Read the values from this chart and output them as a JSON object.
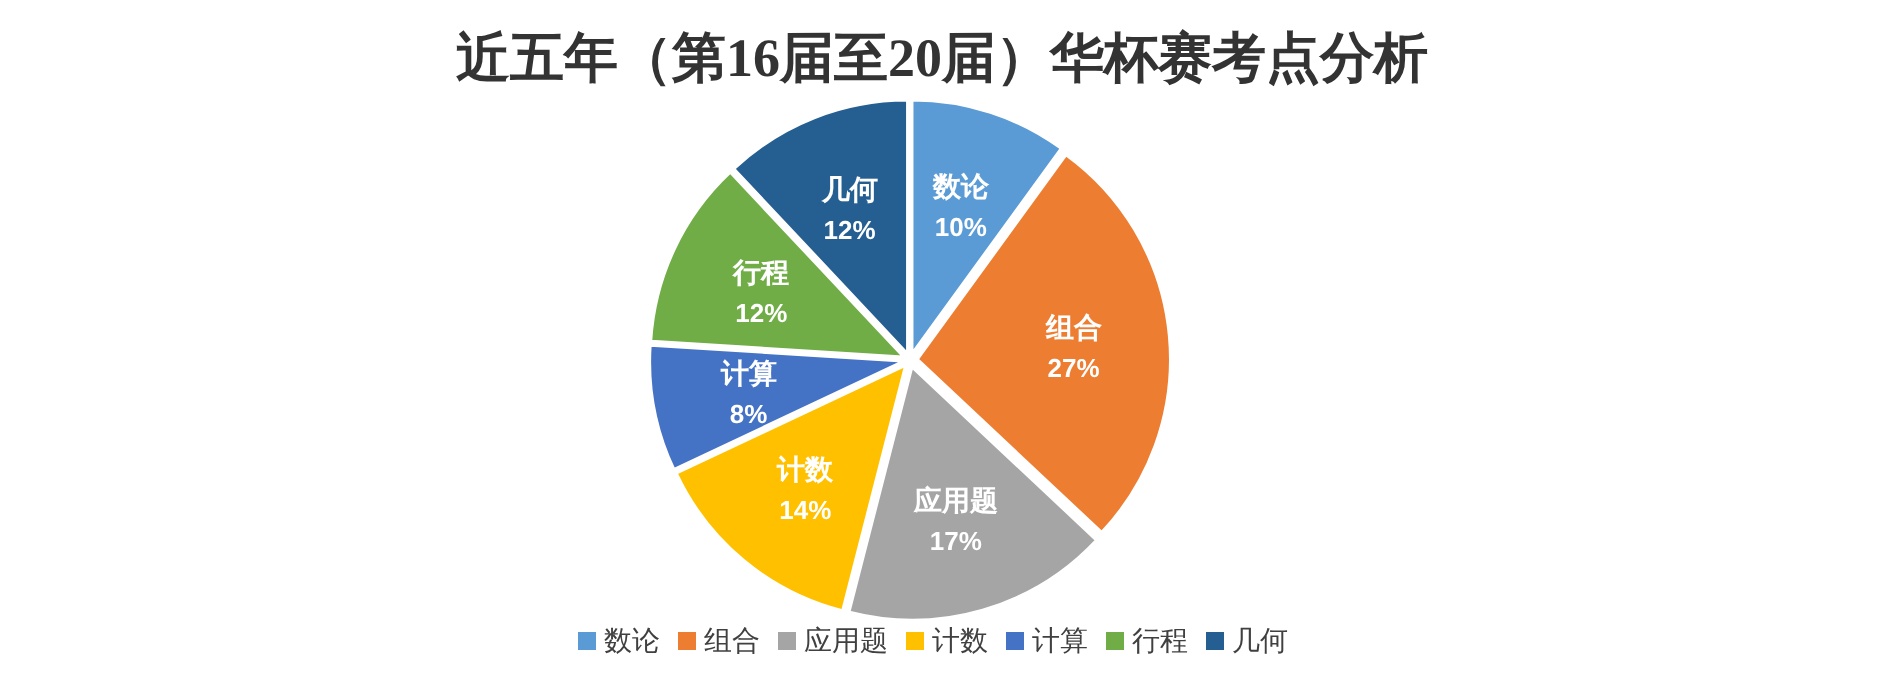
{
  "chart_data": {
    "type": "pie",
    "title": "近五年（第16届至20届）华杯赛考点分析",
    "categories": [
      "数论",
      "组合",
      "应用题",
      "计数",
      "计算",
      "行程",
      "几何"
    ],
    "values": [
      10,
      27,
      17,
      14,
      8,
      12,
      12
    ],
    "colors": [
      "#5b9bd5",
      "#ed7d31",
      "#a5a5a5",
      "#ffc000",
      "#4472c4",
      "#70ad47",
      "#255e91"
    ],
    "value_labels": [
      "10%",
      "27%",
      "17%",
      "14%",
      "8%",
      "12%",
      "12%"
    ],
    "legend": "bottom"
  }
}
